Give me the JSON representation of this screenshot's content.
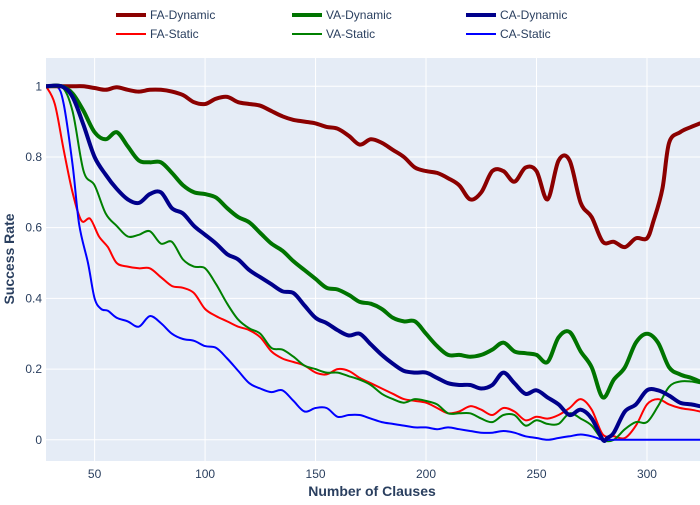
{
  "chart_data": {
    "type": "line",
    "title": "",
    "xlabel": "Number of Clauses",
    "ylabel": "Success Rate",
    "xlim": [
      28,
      324
    ],
    "ylim": [
      -0.06,
      1.08
    ],
    "x_ticks": [
      50,
      100,
      150,
      200,
      250,
      300
    ],
    "y_ticks": [
      0,
      0.2,
      0.4,
      0.6,
      0.8,
      1
    ],
    "y_tick_labels": [
      "0",
      "0.2",
      "0.4",
      "0.6",
      "0.8",
      "1"
    ],
    "grid": true,
    "legend_position": "top",
    "colors": {
      "plot_background": "#e5ecf6",
      "grid": "#ffffff",
      "axis_text": "#2a3f5f"
    },
    "series": [
      {
        "name": "FA-Dynamic",
        "color": "#8b0000",
        "width": 4,
        "x": [
          28,
          35,
          40,
          45,
          50,
          55,
          60,
          65,
          70,
          75,
          80,
          85,
          90,
          95,
          100,
          105,
          110,
          115,
          120,
          125,
          130,
          135,
          140,
          145,
          150,
          155,
          160,
          165,
          170,
          175,
          180,
          185,
          190,
          195,
          200,
          205,
          210,
          215,
          220,
          225,
          230,
          235,
          240,
          245,
          250,
          255,
          260,
          265,
          270,
          275,
          280,
          285,
          290,
          295,
          300,
          303,
          307,
          310,
          315,
          320,
          324
        ],
        "y": [
          1.0,
          1.0,
          1.0,
          1.0,
          0.995,
          0.99,
          0.997,
          0.99,
          0.985,
          0.99,
          0.99,
          0.985,
          0.975,
          0.955,
          0.95,
          0.965,
          0.97,
          0.955,
          0.95,
          0.945,
          0.93,
          0.915,
          0.905,
          0.9,
          0.895,
          0.885,
          0.88,
          0.86,
          0.835,
          0.85,
          0.84,
          0.82,
          0.8,
          0.77,
          0.76,
          0.755,
          0.74,
          0.72,
          0.68,
          0.7,
          0.76,
          0.76,
          0.73,
          0.77,
          0.76,
          0.68,
          0.79,
          0.79,
          0.67,
          0.63,
          0.56,
          0.56,
          0.545,
          0.57,
          0.57,
          0.62,
          0.71,
          0.84,
          0.87,
          0.885,
          0.895
        ]
      },
      {
        "name": "VA-Dynamic",
        "color": "#007400",
        "width": 4,
        "x": [
          28,
          35,
          40,
          45,
          50,
          55,
          60,
          65,
          70,
          75,
          80,
          85,
          90,
          95,
          100,
          105,
          110,
          115,
          120,
          125,
          130,
          135,
          140,
          145,
          150,
          155,
          160,
          165,
          170,
          175,
          180,
          185,
          190,
          195,
          200,
          205,
          210,
          215,
          220,
          225,
          230,
          235,
          240,
          245,
          250,
          255,
          260,
          265,
          270,
          275,
          280,
          285,
          290,
          295,
          300,
          305,
          310,
          315,
          320,
          324
        ],
        "y": [
          1.0,
          1.0,
          0.98,
          0.93,
          0.87,
          0.85,
          0.87,
          0.83,
          0.79,
          0.785,
          0.785,
          0.755,
          0.72,
          0.7,
          0.695,
          0.685,
          0.655,
          0.63,
          0.615,
          0.585,
          0.555,
          0.535,
          0.505,
          0.48,
          0.455,
          0.43,
          0.425,
          0.41,
          0.39,
          0.385,
          0.37,
          0.345,
          0.335,
          0.335,
          0.3,
          0.265,
          0.24,
          0.24,
          0.235,
          0.24,
          0.255,
          0.275,
          0.25,
          0.245,
          0.24,
          0.22,
          0.29,
          0.305,
          0.25,
          0.205,
          0.12,
          0.17,
          0.205,
          0.275,
          0.3,
          0.275,
          0.205,
          0.185,
          0.175,
          0.165
        ]
      },
      {
        "name": "CA-Dynamic",
        "color": "#00008b",
        "width": 4,
        "x": [
          28,
          35,
          40,
          45,
          50,
          55,
          60,
          65,
          70,
          75,
          80,
          85,
          90,
          95,
          100,
          105,
          110,
          115,
          120,
          125,
          130,
          135,
          140,
          145,
          150,
          155,
          160,
          165,
          170,
          175,
          180,
          185,
          190,
          195,
          200,
          205,
          210,
          215,
          220,
          225,
          230,
          235,
          240,
          245,
          250,
          255,
          260,
          265,
          270,
          275,
          280,
          282,
          285,
          290,
          295,
          300,
          305,
          310,
          315,
          320,
          324
        ],
        "y": [
          1.0,
          1.0,
          0.97,
          0.89,
          0.8,
          0.75,
          0.71,
          0.68,
          0.67,
          0.695,
          0.7,
          0.655,
          0.64,
          0.605,
          0.58,
          0.555,
          0.525,
          0.51,
          0.48,
          0.46,
          0.44,
          0.42,
          0.415,
          0.38,
          0.345,
          0.33,
          0.31,
          0.295,
          0.3,
          0.27,
          0.24,
          0.215,
          0.195,
          0.19,
          0.19,
          0.175,
          0.16,
          0.155,
          0.155,
          0.145,
          0.155,
          0.19,
          0.16,
          0.13,
          0.14,
          0.12,
          0.1,
          0.07,
          0.085,
          0.06,
          0.0,
          0.005,
          0.02,
          0.08,
          0.1,
          0.14,
          0.14,
          0.125,
          0.105,
          0.1,
          0.095
        ]
      },
      {
        "name": "FA-Static",
        "color": "#ff0000",
        "width": 2,
        "x": [
          28,
          32,
          36,
          40,
          44,
          48,
          52,
          56,
          60,
          65,
          70,
          75,
          80,
          85,
          90,
          95,
          100,
          105,
          110,
          115,
          120,
          125,
          130,
          135,
          140,
          145,
          150,
          155,
          160,
          165,
          170,
          175,
          180,
          185,
          190,
          195,
          200,
          205,
          210,
          215,
          220,
          225,
          230,
          235,
          240,
          245,
          250,
          255,
          260,
          265,
          270,
          275,
          280,
          285,
          290,
          295,
          300,
          305,
          310,
          315,
          320,
          324
        ],
        "y": [
          1.0,
          0.95,
          0.82,
          0.7,
          0.62,
          0.625,
          0.575,
          0.545,
          0.5,
          0.49,
          0.485,
          0.485,
          0.46,
          0.435,
          0.43,
          0.415,
          0.37,
          0.35,
          0.335,
          0.32,
          0.31,
          0.29,
          0.25,
          0.23,
          0.22,
          0.21,
          0.19,
          0.185,
          0.2,
          0.195,
          0.175,
          0.16,
          0.145,
          0.13,
          0.115,
          0.11,
          0.105,
          0.09,
          0.075,
          0.08,
          0.095,
          0.085,
          0.07,
          0.09,
          0.08,
          0.055,
          0.065,
          0.06,
          0.07,
          0.09,
          0.115,
          0.085,
          0.015,
          0.01,
          0.005,
          0.04,
          0.1,
          0.115,
          0.1,
          0.09,
          0.085,
          0.08
        ]
      },
      {
        "name": "VA-Static",
        "color": "#008000",
        "width": 2,
        "x": [
          28,
          35,
          40,
          45,
          50,
          55,
          60,
          65,
          70,
          75,
          80,
          85,
          90,
          95,
          100,
          105,
          110,
          115,
          120,
          125,
          130,
          135,
          140,
          145,
          150,
          155,
          160,
          165,
          170,
          175,
          180,
          185,
          190,
          195,
          200,
          205,
          210,
          215,
          220,
          225,
          230,
          235,
          240,
          245,
          250,
          255,
          260,
          265,
          270,
          275,
          280,
          285,
          290,
          295,
          300,
          305,
          310,
          315,
          320,
          324
        ],
        "y": [
          1.0,
          1.0,
          0.93,
          0.76,
          0.72,
          0.64,
          0.605,
          0.575,
          0.58,
          0.59,
          0.555,
          0.56,
          0.51,
          0.49,
          0.485,
          0.44,
          0.385,
          0.34,
          0.315,
          0.3,
          0.26,
          0.255,
          0.235,
          0.21,
          0.2,
          0.19,
          0.19,
          0.18,
          0.17,
          0.155,
          0.13,
          0.115,
          0.105,
          0.115,
          0.11,
          0.1,
          0.075,
          0.075,
          0.075,
          0.06,
          0.05,
          0.07,
          0.07,
          0.04,
          0.055,
          0.045,
          0.045,
          0.075,
          0.06,
          0.04,
          0.0,
          0.0,
          0.03,
          0.05,
          0.05,
          0.095,
          0.15,
          0.165,
          0.165,
          0.16
        ]
      },
      {
        "name": "CA-Static",
        "color": "#0000ff",
        "width": 2,
        "x": [
          28,
          33,
          36,
          40,
          43,
          47,
          50,
          53,
          56,
          60,
          65,
          70,
          75,
          80,
          85,
          90,
          95,
          100,
          105,
          110,
          115,
          120,
          125,
          130,
          135,
          140,
          145,
          150,
          155,
          160,
          165,
          170,
          175,
          180,
          185,
          190,
          195,
          200,
          205,
          210,
          215,
          220,
          225,
          230,
          235,
          240,
          245,
          250,
          255,
          260,
          265,
          270,
          275,
          280,
          285,
          290,
          295,
          300,
          305,
          310,
          315,
          320,
          324
        ],
        "y": [
          1.0,
          1.0,
          0.95,
          0.78,
          0.61,
          0.5,
          0.4,
          0.37,
          0.365,
          0.345,
          0.335,
          0.32,
          0.35,
          0.33,
          0.3,
          0.285,
          0.28,
          0.265,
          0.26,
          0.23,
          0.195,
          0.16,
          0.145,
          0.135,
          0.14,
          0.11,
          0.08,
          0.09,
          0.09,
          0.065,
          0.07,
          0.07,
          0.06,
          0.05,
          0.045,
          0.04,
          0.035,
          0.035,
          0.03,
          0.035,
          0.03,
          0.025,
          0.02,
          0.02,
          0.025,
          0.02,
          0.01,
          0.005,
          0.0,
          0.005,
          0.01,
          0.015,
          0.01,
          0.0,
          0.0,
          0.0,
          0.0,
          0.0,
          0.0,
          0.0,
          0.0,
          0.0,
          0.0
        ]
      }
    ]
  }
}
